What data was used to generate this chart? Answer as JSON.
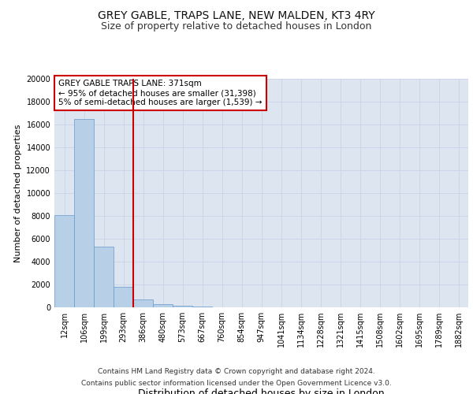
{
  "title": "GREY GABLE, TRAPS LANE, NEW MALDEN, KT3 4RY",
  "subtitle": "Size of property relative to detached houses in London",
  "xlabel": "Distribution of detached houses by size in London",
  "ylabel": "Number of detached properties",
  "categories": [
    "12sqm",
    "106sqm",
    "199sqm",
    "293sqm",
    "386sqm",
    "480sqm",
    "573sqm",
    "667sqm",
    "760sqm",
    "854sqm",
    "947sqm",
    "1041sqm",
    "1134sqm",
    "1228sqm",
    "1321sqm",
    "1415sqm",
    "1508sqm",
    "1602sqm",
    "1695sqm",
    "1789sqm",
    "1882sqm"
  ],
  "values": [
    8100,
    16500,
    5300,
    1800,
    700,
    280,
    130,
    60,
    0,
    0,
    0,
    0,
    0,
    0,
    0,
    0,
    0,
    0,
    0,
    0,
    0
  ],
  "bar_color": "#b8cfe8",
  "bar_edge_color": "#6699cc",
  "vline_color": "#cc0000",
  "vline_index": 3.5,
  "annotation_text": "GREY GABLE TRAPS LANE: 371sqm\n← 95% of detached houses are smaller (31,398)\n5% of semi-detached houses are larger (1,539) →",
  "annotation_box_facecolor": "#ffffff",
  "annotation_box_edgecolor": "#cc0000",
  "ylim": [
    0,
    20000
  ],
  "yticks": [
    0,
    2000,
    4000,
    6000,
    8000,
    10000,
    12000,
    14000,
    16000,
    18000,
    20000
  ],
  "grid_color": "#c8d4e8",
  "background_color": "#dde6f0",
  "footer_line1": "Contains HM Land Registry data © Crown copyright and database right 2024.",
  "footer_line2": "Contains public sector information licensed under the Open Government Licence v3.0.",
  "title_fontsize": 10,
  "subtitle_fontsize": 9,
  "xlabel_fontsize": 9,
  "ylabel_fontsize": 8,
  "tick_fontsize": 7,
  "annotation_fontsize": 7.5,
  "footer_fontsize": 6.5
}
